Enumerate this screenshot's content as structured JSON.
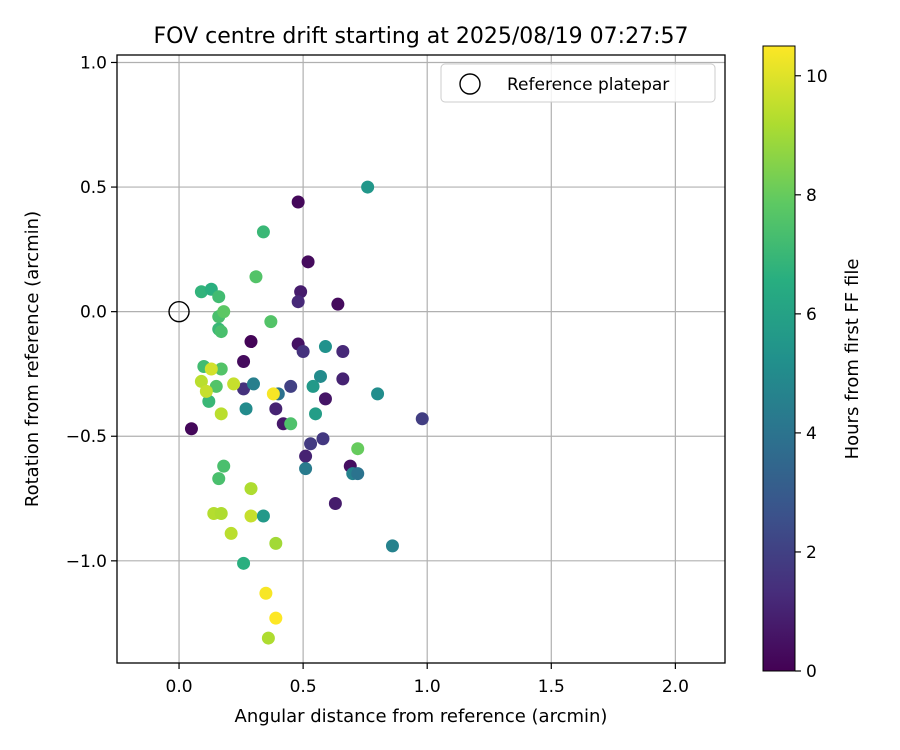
{
  "chart_data": {
    "type": "scatter",
    "title": "FOV centre drift starting at 2025/08/19 07:27:57",
    "xlabel": "Angular distance from reference (arcmin)",
    "ylabel": "Rotation from reference (arcmin)",
    "xlim": [
      -0.25,
      2.2
    ],
    "ylim": [
      -1.41,
      1.03
    ],
    "xticks": [
      0.0,
      0.5,
      1.0,
      1.5,
      2.0
    ],
    "xtick_labels": [
      "0.0",
      "0.5",
      "1.0",
      "1.5",
      "2.0"
    ],
    "yticks": [
      1.0,
      0.5,
      0.0,
      -0.5,
      -1.0
    ],
    "ytick_labels": [
      "1.0",
      "0.5",
      "0.0",
      "−0.5",
      "−1.0"
    ],
    "grid": true,
    "legend": {
      "position": "top-right",
      "entries": [
        "Reference platepar"
      ]
    },
    "reference_point": {
      "x": 0.0,
      "y": 0.0
    },
    "colorbar": {
      "label": "Hours from first FF file",
      "colormap": "viridis",
      "range": [
        0,
        10.5
      ],
      "ticks": [
        0,
        2,
        4,
        6,
        8,
        10
      ],
      "tick_labels": [
        "0",
        "2",
        "4",
        "6",
        "8",
        "10"
      ]
    },
    "points": [
      {
        "x": 0.48,
        "y": 0.44,
        "t": 0.2
      },
      {
        "x": 0.52,
        "y": 0.2,
        "t": 0.3
      },
      {
        "x": 0.49,
        "y": 0.08,
        "t": 0.8
      },
      {
        "x": 0.48,
        "y": 0.04,
        "t": 1.2
      },
      {
        "x": 0.64,
        "y": 0.03,
        "t": 0.3
      },
      {
        "x": 0.48,
        "y": -0.13,
        "t": 0.5
      },
      {
        "x": 0.5,
        "y": -0.16,
        "t": 1.5
      },
      {
        "x": 0.66,
        "y": -0.16,
        "t": 1.2
      },
      {
        "x": 0.66,
        "y": -0.27,
        "t": 1.0
      },
      {
        "x": 0.59,
        "y": -0.35,
        "t": 0.6
      },
      {
        "x": 0.29,
        "y": -0.12,
        "t": 0.1
      },
      {
        "x": 0.26,
        "y": -0.2,
        "t": 0.3
      },
      {
        "x": 0.26,
        "y": -0.31,
        "t": 1.5
      },
      {
        "x": 0.39,
        "y": -0.39,
        "t": 1.0
      },
      {
        "x": 0.42,
        "y": -0.45,
        "t": 0.7
      },
      {
        "x": 0.45,
        "y": -0.3,
        "t": 2.0
      },
      {
        "x": 0.53,
        "y": -0.53,
        "t": 1.8
      },
      {
        "x": 0.58,
        "y": -0.51,
        "t": 1.7
      },
      {
        "x": 0.51,
        "y": -0.58,
        "t": 1.0
      },
      {
        "x": 0.69,
        "y": -0.62,
        "t": 0.4
      },
      {
        "x": 0.63,
        "y": -0.77,
        "t": 0.8
      },
      {
        "x": 0.98,
        "y": -0.43,
        "t": 1.9
      },
      {
        "x": 0.05,
        "y": -0.47,
        "t": 0.2
      },
      {
        "x": 0.76,
        "y": 0.5,
        "t": 5.5
      },
      {
        "x": 0.34,
        "y": 0.32,
        "t": 7.0
      },
      {
        "x": 0.31,
        "y": 0.14,
        "t": 7.6
      },
      {
        "x": 0.37,
        "y": -0.04,
        "t": 7.6
      },
      {
        "x": 0.59,
        "y": -0.14,
        "t": 5.3
      },
      {
        "x": 0.57,
        "y": -0.26,
        "t": 5.0
      },
      {
        "x": 0.54,
        "y": -0.3,
        "t": 5.6
      },
      {
        "x": 0.55,
        "y": -0.41,
        "t": 5.8
      },
      {
        "x": 0.8,
        "y": -0.33,
        "t": 5.1
      },
      {
        "x": 0.72,
        "y": -0.55,
        "t": 8.0
      },
      {
        "x": 0.51,
        "y": -0.63,
        "t": 4.3
      },
      {
        "x": 0.7,
        "y": -0.65,
        "t": 4.6
      },
      {
        "x": 0.72,
        "y": -0.65,
        "t": 4.0
      },
      {
        "x": 0.86,
        "y": -0.94,
        "t": 4.6
      },
      {
        "x": 0.3,
        "y": -0.29,
        "t": 4.5
      },
      {
        "x": 0.27,
        "y": -0.39,
        "t": 5.0
      },
      {
        "x": 0.4,
        "y": -0.33,
        "t": 3.9
      },
      {
        "x": 0.45,
        "y": -0.45,
        "t": 7.5
      },
      {
        "x": 0.09,
        "y": 0.08,
        "t": 6.8
      },
      {
        "x": 0.13,
        "y": 0.09,
        "t": 6.6
      },
      {
        "x": 0.16,
        "y": 0.06,
        "t": 7.2
      },
      {
        "x": 0.16,
        "y": -0.02,
        "t": 7.4
      },
      {
        "x": 0.18,
        "y": 0.0,
        "t": 7.8
      },
      {
        "x": 0.16,
        "y": -0.07,
        "t": 7.0
      },
      {
        "x": 0.17,
        "y": -0.08,
        "t": 7.4
      },
      {
        "x": 0.1,
        "y": -0.22,
        "t": 7.2
      },
      {
        "x": 0.17,
        "y": -0.23,
        "t": 7.6
      },
      {
        "x": 0.15,
        "y": -0.3,
        "t": 7.6
      },
      {
        "x": 0.12,
        "y": -0.36,
        "t": 7.0
      },
      {
        "x": 0.13,
        "y": -0.23,
        "t": 9.8
      },
      {
        "x": 0.09,
        "y": -0.28,
        "t": 9.4
      },
      {
        "x": 0.11,
        "y": -0.32,
        "t": 9.6
      },
      {
        "x": 0.22,
        "y": -0.29,
        "t": 9.6
      },
      {
        "x": 0.38,
        "y": -0.33,
        "t": 10.4
      },
      {
        "x": 0.17,
        "y": -0.41,
        "t": 9.4
      },
      {
        "x": 0.18,
        "y": -0.62,
        "t": 7.4
      },
      {
        "x": 0.16,
        "y": -0.67,
        "t": 7.4
      },
      {
        "x": 0.29,
        "y": -0.71,
        "t": 9.2
      },
      {
        "x": 0.14,
        "y": -0.81,
        "t": 9.3
      },
      {
        "x": 0.17,
        "y": -0.81,
        "t": 9.2
      },
      {
        "x": 0.29,
        "y": -0.82,
        "t": 9.6
      },
      {
        "x": 0.34,
        "y": -0.82,
        "t": 5.6
      },
      {
        "x": 0.21,
        "y": -0.89,
        "t": 9.4
      },
      {
        "x": 0.39,
        "y": -0.93,
        "t": 9.0
      },
      {
        "x": 0.26,
        "y": -1.01,
        "t": 6.6
      },
      {
        "x": 0.35,
        "y": -1.13,
        "t": 10.4
      },
      {
        "x": 0.39,
        "y": -1.23,
        "t": 10.5
      },
      {
        "x": 0.36,
        "y": -1.31,
        "t": 9.2
      }
    ]
  }
}
